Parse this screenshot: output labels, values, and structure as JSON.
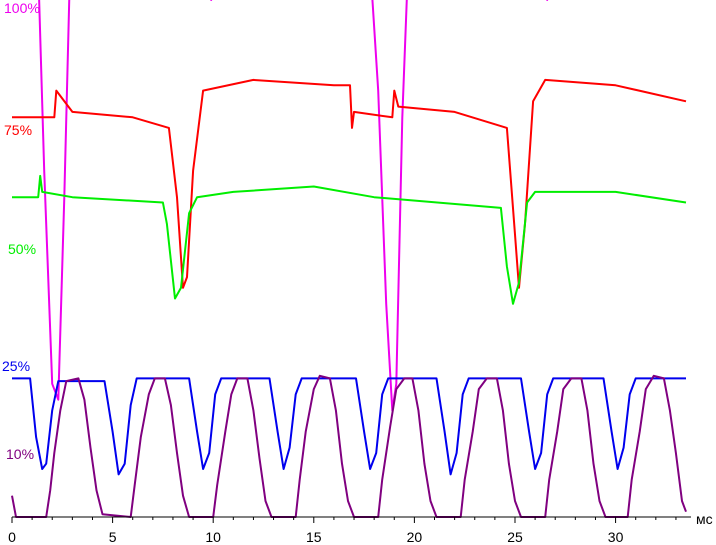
{
  "chart_data": {
    "type": "line",
    "xlabel": "мс",
    "xlim": [
      0,
      33.5
    ],
    "xticks": [
      0,
      5,
      10,
      15,
      20,
      25,
      30
    ],
    "grid": false,
    "series": [
      {
        "name": "100%",
        "color": "#ee00ee",
        "points": [
          [
            0,
            10.5
          ],
          [
            1.0,
            10.5
          ],
          [
            1.3,
            10.3
          ],
          [
            1.6,
            6.5
          ],
          [
            2.0,
            2.5
          ],
          [
            2.3,
            2.2
          ],
          [
            2.6,
            6.0
          ],
          [
            2.9,
            10.5
          ],
          [
            3.2,
            11.6
          ],
          [
            5,
            11.8
          ],
          [
            7.5,
            11.6
          ],
          [
            9.8,
            11.2
          ],
          [
            9.9,
            9.7
          ],
          [
            10.0,
            11.0
          ],
          [
            11.0,
            10.7
          ],
          [
            11.9,
            10.5
          ],
          [
            12.0,
            11.7
          ],
          [
            12.2,
            10.7
          ],
          [
            14,
            10.4
          ],
          [
            17,
            10.0
          ],
          [
            17.9,
            9.8
          ],
          [
            18.2,
            8.0
          ],
          [
            18.6,
            4.0
          ],
          [
            18.9,
            2.0
          ],
          [
            19.1,
            2.5
          ],
          [
            19.4,
            7.5
          ],
          [
            19.7,
            10.5
          ],
          [
            20,
            11.4
          ],
          [
            22,
            11.8
          ],
          [
            25,
            11.5
          ],
          [
            26.5,
            11.3
          ],
          [
            26.6,
            9.7
          ],
          [
            26.7,
            10.5
          ],
          [
            28.2,
            10.2
          ],
          [
            28.3,
            11.3
          ],
          [
            28.4,
            10.8
          ],
          [
            30,
            10.7
          ],
          [
            33.5,
            10.2
          ]
        ]
      },
      {
        "name": "75%",
        "color": "#ff0000",
        "points": [
          [
            0,
            7.5
          ],
          [
            2.1,
            7.5
          ],
          [
            2.2,
            8.0
          ],
          [
            3,
            7.6
          ],
          [
            6,
            7.5
          ],
          [
            7.8,
            7.3
          ],
          [
            8.2,
            6.0
          ],
          [
            8.5,
            4.3
          ],
          [
            8.7,
            4.5
          ],
          [
            9.0,
            6.5
          ],
          [
            9.5,
            8.0
          ],
          [
            12,
            8.2
          ],
          [
            16,
            8.1
          ],
          [
            16.8,
            8.1
          ],
          [
            16.9,
            7.3
          ],
          [
            17.0,
            7.6
          ],
          [
            18.9,
            7.5
          ],
          [
            19.0,
            8.0
          ],
          [
            19.2,
            7.7
          ],
          [
            22,
            7.6
          ],
          [
            24.6,
            7.3
          ],
          [
            25.0,
            5.3
          ],
          [
            25.2,
            4.3
          ],
          [
            25.5,
            5.5
          ],
          [
            25.9,
            7.8
          ],
          [
            26.5,
            8.2
          ],
          [
            30,
            8.1
          ],
          [
            33.5,
            7.8
          ]
        ]
      },
      {
        "name": "50%",
        "color": "#00ee00",
        "points": [
          [
            0,
            6.0
          ],
          [
            1.3,
            6.0
          ],
          [
            1.4,
            6.4
          ],
          [
            1.5,
            6.1
          ],
          [
            3,
            6.0
          ],
          [
            7.5,
            5.9
          ],
          [
            7.7,
            5.5
          ],
          [
            8.1,
            4.1
          ],
          [
            8.4,
            4.3
          ],
          [
            8.8,
            5.7
          ],
          [
            9.2,
            6.0
          ],
          [
            11,
            6.1
          ],
          [
            15,
            6.2
          ],
          [
            18,
            6.0
          ],
          [
            24.3,
            5.8
          ],
          [
            24.6,
            4.7
          ],
          [
            24.9,
            4.0
          ],
          [
            25.2,
            4.4
          ],
          [
            25.6,
            5.9
          ],
          [
            26,
            6.1
          ],
          [
            30,
            6.1
          ],
          [
            33.5,
            5.9
          ]
        ]
      },
      {
        "name": "25%",
        "color": "#0000ee",
        "points": [
          [
            0,
            2.6
          ],
          [
            0.9,
            2.6
          ],
          [
            1.2,
            1.5
          ],
          [
            1.5,
            0.9
          ],
          [
            1.7,
            1.0
          ],
          [
            2.0,
            2.0
          ],
          [
            2.3,
            2.55
          ],
          [
            4.6,
            2.55
          ],
          [
            5.0,
            1.6
          ],
          [
            5.3,
            0.8
          ],
          [
            5.6,
            1.0
          ],
          [
            5.9,
            2.1
          ],
          [
            6.2,
            2.6
          ],
          [
            8.8,
            2.6
          ],
          [
            9.2,
            1.6
          ],
          [
            9.5,
            0.9
          ],
          [
            9.8,
            1.2
          ],
          [
            10.1,
            2.3
          ],
          [
            10.4,
            2.6
          ],
          [
            12.8,
            2.6
          ],
          [
            13.2,
            1.6
          ],
          [
            13.5,
            0.9
          ],
          [
            13.8,
            1.3
          ],
          [
            14.1,
            2.3
          ],
          [
            14.4,
            2.6
          ],
          [
            17.1,
            2.6
          ],
          [
            17.5,
            1.6
          ],
          [
            17.8,
            0.9
          ],
          [
            18.1,
            1.2
          ],
          [
            18.4,
            2.3
          ],
          [
            18.7,
            2.6
          ],
          [
            21.1,
            2.6
          ],
          [
            21.5,
            1.6
          ],
          [
            21.8,
            0.8
          ],
          [
            22.1,
            1.2
          ],
          [
            22.4,
            2.3
          ],
          [
            22.7,
            2.6
          ],
          [
            25.3,
            2.6
          ],
          [
            25.7,
            1.6
          ],
          [
            26.0,
            0.9
          ],
          [
            26.3,
            1.2
          ],
          [
            26.6,
            2.3
          ],
          [
            26.9,
            2.6
          ],
          [
            29.4,
            2.6
          ],
          [
            29.8,
            1.6
          ],
          [
            30.1,
            0.9
          ],
          [
            30.4,
            1.3
          ],
          [
            30.7,
            2.3
          ],
          [
            31.0,
            2.6
          ],
          [
            33.5,
            2.6
          ]
        ]
      },
      {
        "name": "10%",
        "color": "#800080",
        "points": [
          [
            0,
            0.4
          ],
          [
            0.2,
            0.0
          ],
          [
            1.7,
            0.0
          ],
          [
            1.9,
            0.5
          ],
          [
            2.1,
            1.2
          ],
          [
            2.4,
            2.0
          ],
          [
            2.7,
            2.55
          ],
          [
            3.3,
            2.6
          ],
          [
            3.6,
            2.2
          ],
          [
            3.9,
            1.3
          ],
          [
            4.2,
            0.5
          ],
          [
            4.5,
            0.05
          ],
          [
            5.9,
            0.0
          ],
          [
            6.1,
            0.6
          ],
          [
            6.4,
            1.5
          ],
          [
            6.8,
            2.3
          ],
          [
            7.1,
            2.6
          ],
          [
            7.6,
            2.6
          ],
          [
            7.9,
            2.1
          ],
          [
            8.2,
            1.2
          ],
          [
            8.5,
            0.4
          ],
          [
            8.8,
            0.0
          ],
          [
            10.0,
            0.0
          ],
          [
            10.2,
            0.6
          ],
          [
            10.6,
            1.6
          ],
          [
            10.9,
            2.3
          ],
          [
            11.2,
            2.6
          ],
          [
            11.7,
            2.6
          ],
          [
            12.0,
            2.0
          ],
          [
            12.3,
            1.1
          ],
          [
            12.6,
            0.3
          ],
          [
            12.9,
            0.0
          ],
          [
            14.1,
            0.0
          ],
          [
            14.3,
            0.7
          ],
          [
            14.6,
            1.6
          ],
          [
            15.0,
            2.4
          ],
          [
            15.3,
            2.65
          ],
          [
            15.8,
            2.6
          ],
          [
            16.1,
            2.0
          ],
          [
            16.4,
            1.0
          ],
          [
            16.7,
            0.3
          ],
          [
            17.0,
            0.0
          ],
          [
            18.2,
            0.0
          ],
          [
            18.4,
            0.7
          ],
          [
            18.8,
            1.7
          ],
          [
            19.1,
            2.4
          ],
          [
            19.5,
            2.6
          ],
          [
            19.9,
            2.6
          ],
          [
            20.2,
            2.0
          ],
          [
            20.5,
            1.0
          ],
          [
            20.8,
            0.3
          ],
          [
            21.1,
            0.0
          ],
          [
            22.3,
            0.0
          ],
          [
            22.5,
            0.7
          ],
          [
            22.9,
            1.6
          ],
          [
            23.2,
            2.4
          ],
          [
            23.6,
            2.6
          ],
          [
            24.1,
            2.6
          ],
          [
            24.4,
            2.0
          ],
          [
            24.7,
            1.0
          ],
          [
            25.0,
            0.3
          ],
          [
            25.3,
            0.0
          ],
          [
            26.5,
            0.0
          ],
          [
            26.7,
            0.7
          ],
          [
            27.1,
            1.6
          ],
          [
            27.4,
            2.4
          ],
          [
            27.8,
            2.6
          ],
          [
            28.3,
            2.6
          ],
          [
            28.6,
            2.0
          ],
          [
            28.9,
            1.0
          ],
          [
            29.2,
            0.3
          ],
          [
            29.5,
            0.0
          ],
          [
            30.6,
            0.0
          ],
          [
            30.8,
            0.7
          ],
          [
            31.2,
            1.6
          ],
          [
            31.5,
            2.4
          ],
          [
            31.9,
            2.65
          ],
          [
            32.4,
            2.6
          ],
          [
            32.7,
            2.0
          ],
          [
            33.0,
            1.2
          ],
          [
            33.3,
            0.3
          ],
          [
            33.5,
            0.1
          ]
        ]
      }
    ]
  }
}
